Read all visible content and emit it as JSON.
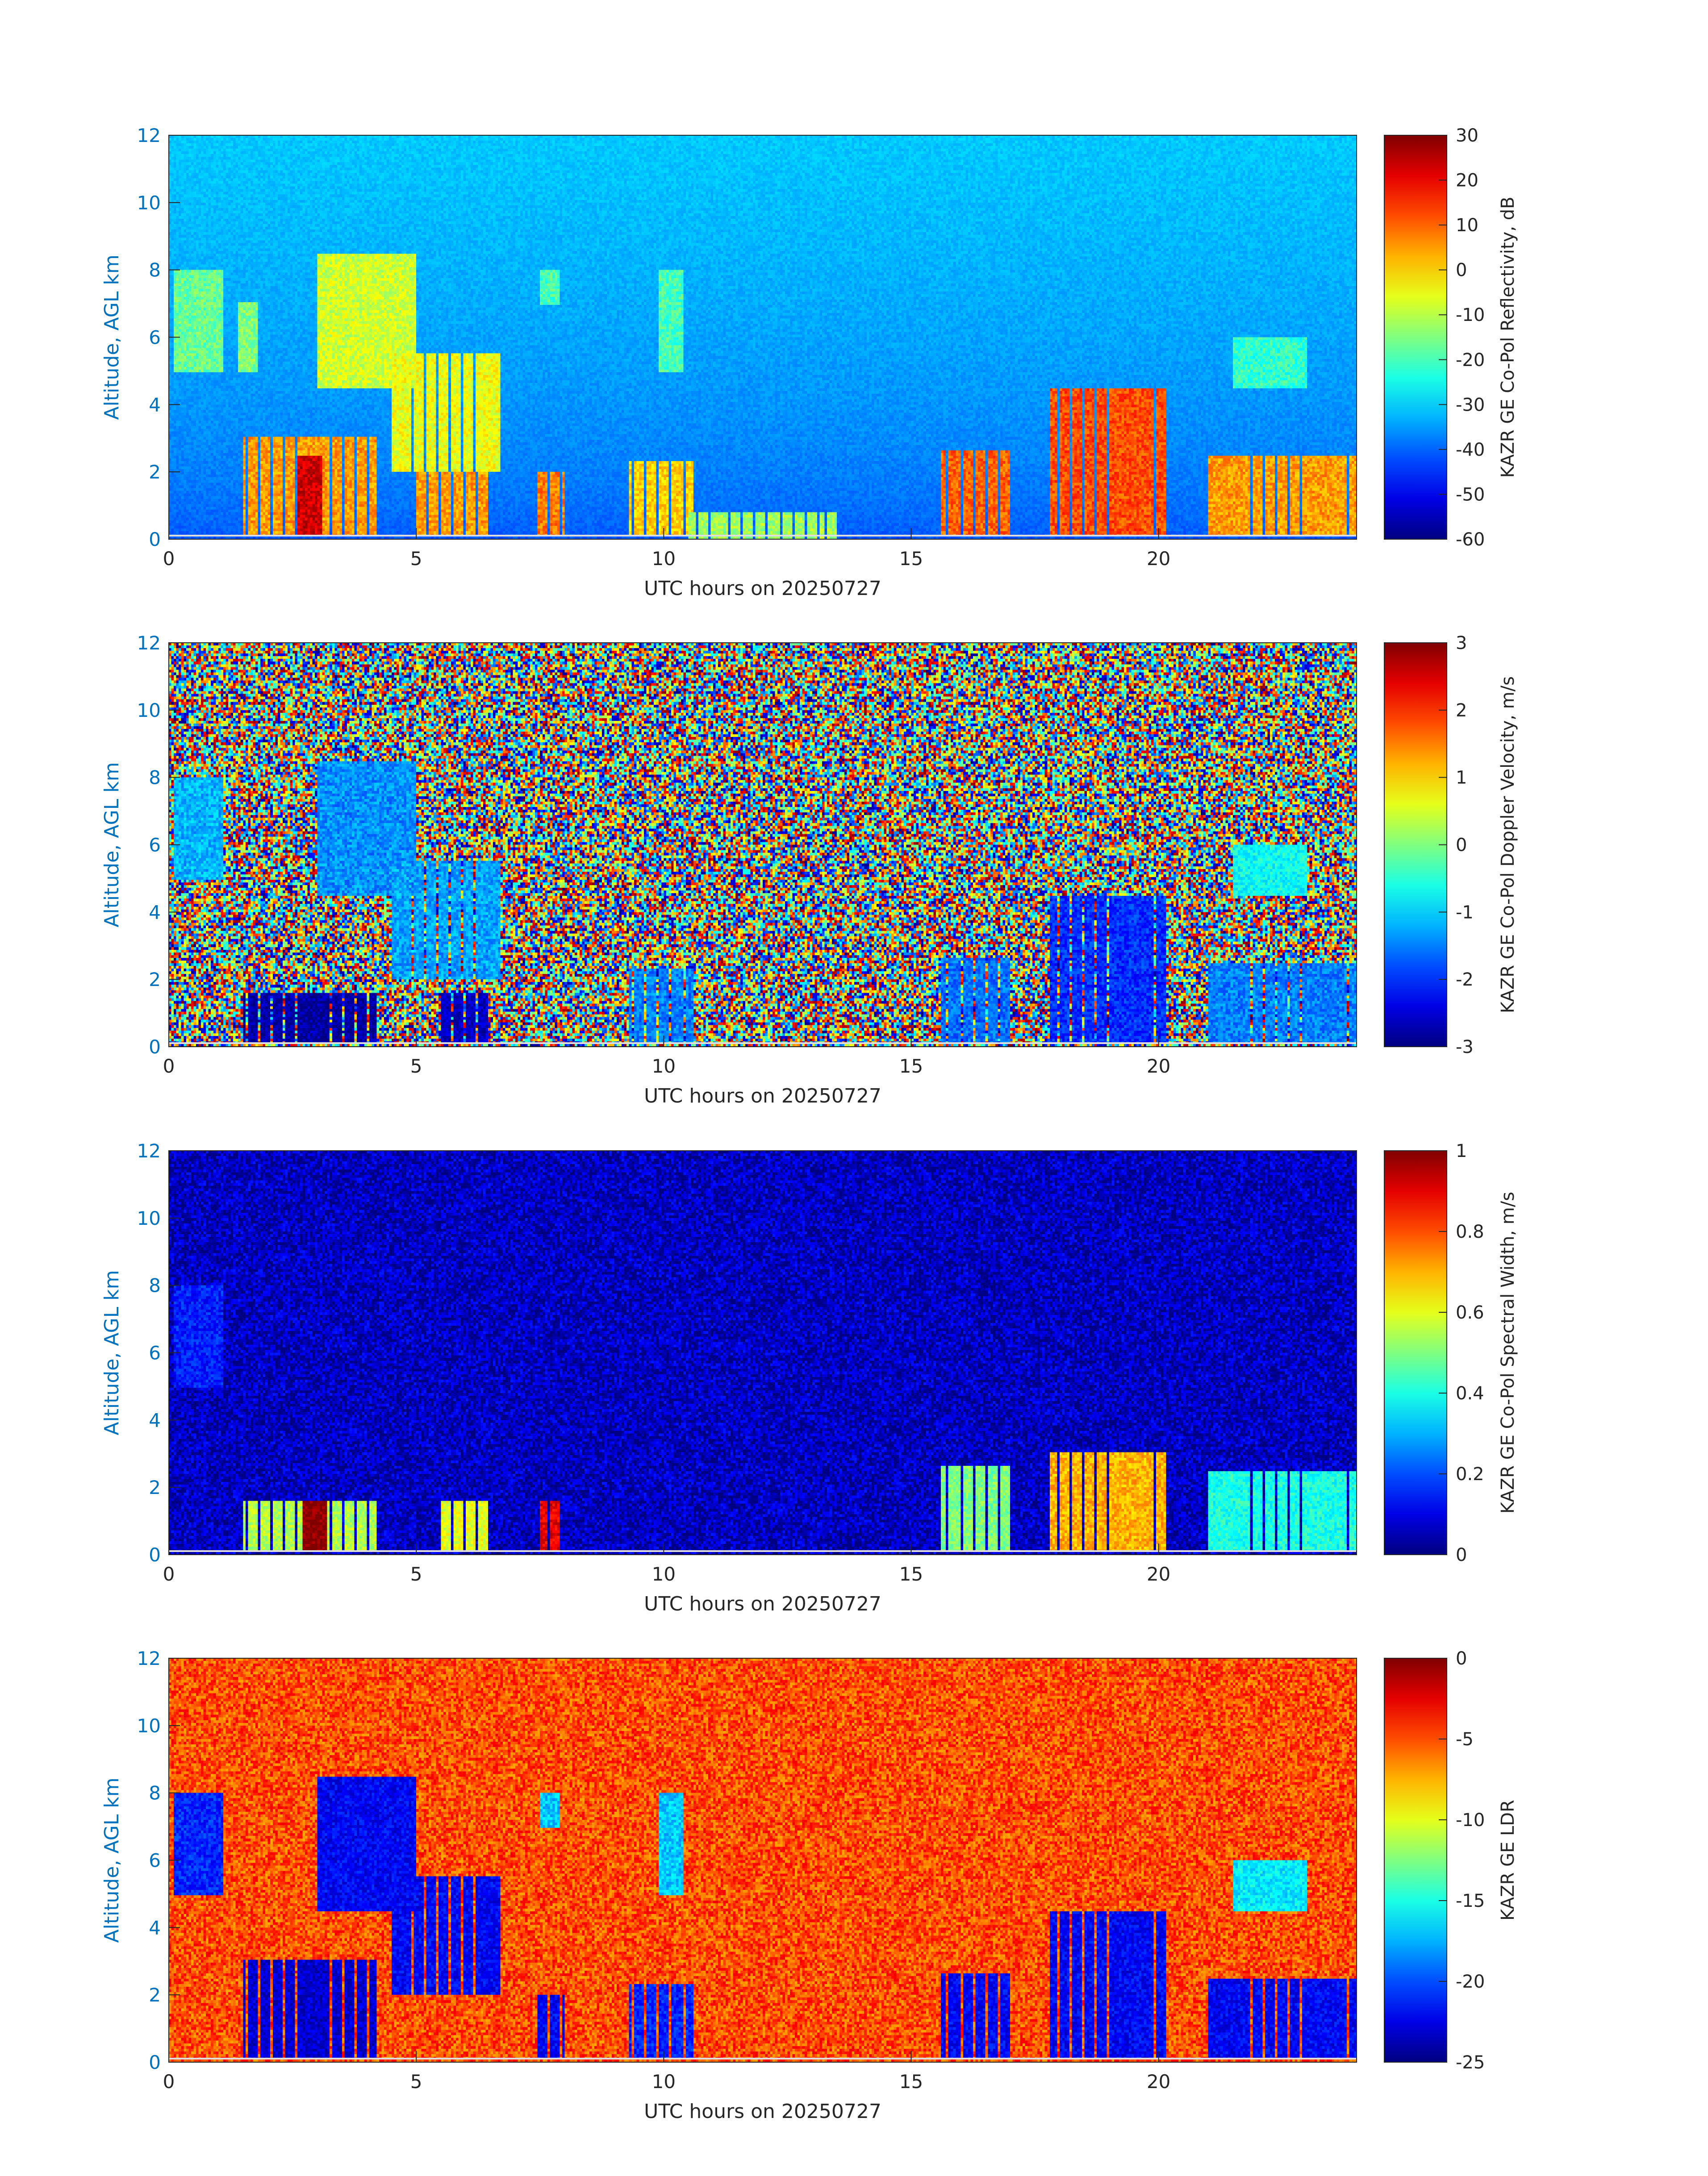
{
  "figure": {
    "xlabel": "UTC hours on 20250727",
    "ylabel": "Altitude, AGL km",
    "axis_label_color": "#0072BD",
    "tick_label_color": "#262626",
    "colormap": "jet"
  },
  "chart_data": [
    {
      "type": "heatmap",
      "panel": "reflectivity",
      "xlabel": "UTC hours on 20250727",
      "ylabel": "Altitude, AGL km",
      "xlim": [
        0,
        24
      ],
      "ylim": [
        0,
        12
      ],
      "xticks": [
        0,
        5,
        10,
        15,
        20
      ],
      "yticks": [
        0,
        2,
        4,
        6,
        8,
        10,
        12
      ],
      "colorbar": {
        "label": "KAZR GE Co-Pol Reflectivity, dB",
        "range": [
          -60,
          30
        ],
        "ticks": [
          30,
          20,
          10,
          0,
          -10,
          -20,
          -30,
          -40,
          -50,
          -60
        ]
      },
      "background": {
        "top": -31,
        "bottom": -42
      },
      "cloud_features": [
        {
          "t": [
            0.1,
            1.1
          ],
          "z": [
            5.0,
            8.0
          ],
          "value": -17
        },
        {
          "t": [
            1.4,
            1.8
          ],
          "z": [
            5.0,
            7.0
          ],
          "value": -15
        },
        {
          "t": [
            3.0,
            5.0
          ],
          "z": [
            4.5,
            8.5
          ],
          "value": -8
        },
        {
          "t": [
            4.5,
            6.7
          ],
          "z": [
            2.0,
            5.5
          ],
          "value": -5
        },
        {
          "t": [
            1.5,
            4.2
          ],
          "z": [
            0.1,
            3.0
          ],
          "value": 5
        },
        {
          "t": [
            2.6,
            3.1
          ],
          "z": [
            0.1,
            2.5
          ],
          "value": 23
        },
        {
          "t": [
            5.0,
            6.5
          ],
          "z": [
            0.1,
            2.0
          ],
          "value": 5
        },
        {
          "t": [
            7.4,
            8.0
          ],
          "z": [
            0.1,
            2.0
          ],
          "value": 8
        },
        {
          "t": [
            9.3,
            10.6
          ],
          "z": [
            0.1,
            2.3
          ],
          "value": 0
        },
        {
          "t": [
            10.5,
            13.5
          ],
          "z": [
            0.0,
            0.8
          ],
          "value": -12
        },
        {
          "t": [
            15.6,
            17.0
          ],
          "z": [
            0.1,
            2.6
          ],
          "value": 10
        },
        {
          "t": [
            17.8,
            20.2
          ],
          "z": [
            0.1,
            4.5
          ],
          "value": 12
        },
        {
          "t": [
            21.0,
            24.0
          ],
          "z": [
            0.1,
            2.5
          ],
          "value": 5
        },
        {
          "t": [
            21.5,
            23.0
          ],
          "z": [
            4.5,
            6.0
          ],
          "value": -22
        },
        {
          "t": [
            7.5,
            7.9
          ],
          "z": [
            7.0,
            8.0
          ],
          "value": -20
        },
        {
          "t": [
            9.9,
            10.4
          ],
          "z": [
            5.0,
            8.0
          ],
          "value": -20
        }
      ]
    },
    {
      "type": "heatmap",
      "panel": "doppler_velocity",
      "xlabel": "UTC hours on 20250727",
      "ylabel": "Altitude, AGL km",
      "xlim": [
        0,
        24
      ],
      "ylim": [
        0,
        12
      ],
      "xticks": [
        0,
        5,
        10,
        15,
        20
      ],
      "yticks": [
        0,
        2,
        4,
        6,
        8,
        10,
        12
      ],
      "colorbar": {
        "label": "KAZR GE Co-Pol Doppler Velocity, m/s",
        "range": [
          -3,
          3
        ],
        "ticks": [
          3,
          2,
          1,
          0,
          -1,
          -2,
          -3
        ]
      },
      "background": "noise",
      "cloud_features": [
        {
          "t": [
            0.1,
            1.1
          ],
          "z": [
            5.0,
            8.0
          ],
          "value": -1.2
        },
        {
          "t": [
            3.0,
            5.0
          ],
          "z": [
            4.5,
            8.5
          ],
          "value": -1.4
        },
        {
          "t": [
            4.5,
            6.7
          ],
          "z": [
            2.0,
            5.5
          ],
          "value": -1.3
        },
        {
          "t": [
            1.5,
            4.2
          ],
          "z": [
            0.1,
            1.6
          ],
          "value": -2.8
        },
        {
          "t": [
            5.5,
            6.5
          ],
          "z": [
            0.1,
            1.6
          ],
          "value": -2.6
        },
        {
          "t": [
            9.3,
            10.6
          ],
          "z": [
            0.1,
            2.3
          ],
          "value": -1.5
        },
        {
          "t": [
            15.6,
            17.0
          ],
          "z": [
            0.1,
            2.6
          ],
          "value": -1.6
        },
        {
          "t": [
            17.8,
            20.2
          ],
          "z": [
            0.1,
            4.5
          ],
          "value": -2.0
        },
        {
          "t": [
            21.0,
            24.0
          ],
          "z": [
            0.1,
            2.5
          ],
          "value": -1.5
        },
        {
          "t": [
            21.5,
            23.0
          ],
          "z": [
            4.5,
            6.0
          ],
          "value": -0.7
        }
      ]
    },
    {
      "type": "heatmap",
      "panel": "spectral_width",
      "xlabel": "UTC hours on 20250727",
      "ylabel": "Altitude, AGL km",
      "xlim": [
        0,
        24
      ],
      "ylim": [
        0,
        12
      ],
      "xticks": [
        0,
        5,
        10,
        15,
        20
      ],
      "yticks": [
        0,
        2,
        4,
        6,
        8,
        10,
        12
      ],
      "colorbar": {
        "label": "KAZR GE Co-Pol Spectral Width, m/s",
        "range": [
          0,
          1
        ],
        "ticks": [
          1,
          0.8,
          0.6,
          0.4,
          0.2,
          0
        ]
      },
      "background": 0.06,
      "cloud_features": [
        {
          "t": [
            0.1,
            1.1
          ],
          "z": [
            5.0,
            8.0
          ],
          "value": 0.15
        },
        {
          "t": [
            1.5,
            4.2
          ],
          "z": [
            0.1,
            1.6
          ],
          "value": 0.55
        },
        {
          "t": [
            2.7,
            3.2
          ],
          "z": [
            0.1,
            1.6
          ],
          "value": 1.0
        },
        {
          "t": [
            5.5,
            6.5
          ],
          "z": [
            0.1,
            1.6
          ],
          "value": 0.6
        },
        {
          "t": [
            7.5,
            7.9
          ],
          "z": [
            0.1,
            1.6
          ],
          "value": 0.9
        },
        {
          "t": [
            15.6,
            17.0
          ],
          "z": [
            0.1,
            2.6
          ],
          "value": 0.5
        },
        {
          "t": [
            17.8,
            20.2
          ],
          "z": [
            0.1,
            3.0
          ],
          "value": 0.7
        },
        {
          "t": [
            21.0,
            24.0
          ],
          "z": [
            0.1,
            2.5
          ],
          "value": 0.4
        }
      ]
    },
    {
      "type": "heatmap",
      "panel": "ldr",
      "xlabel": "UTC hours on 20250727",
      "ylabel": "Altitude, AGL km",
      "xlim": [
        0,
        24
      ],
      "ylim": [
        0,
        12
      ],
      "xticks": [
        0,
        5,
        10,
        15,
        20
      ],
      "yticks": [
        0,
        2,
        4,
        6,
        8,
        10,
        12
      ],
      "colorbar": {
        "label": "KAZR GE LDR",
        "range": [
          -25,
          0
        ],
        "ticks": [
          0,
          -5,
          -10,
          -15,
          -20,
          -25
        ]
      },
      "background": -5,
      "cloud_features": [
        {
          "t": [
            0.1,
            1.1
          ],
          "z": [
            5.0,
            8.0
          ],
          "value": -21
        },
        {
          "t": [
            3.0,
            5.0
          ],
          "z": [
            4.5,
            8.5
          ],
          "value": -22
        },
        {
          "t": [
            4.5,
            6.7
          ],
          "z": [
            2.0,
            5.5
          ],
          "value": -22
        },
        {
          "t": [
            1.5,
            4.2
          ],
          "z": [
            0.1,
            3.0
          ],
          "value": -23
        },
        {
          "t": [
            7.4,
            8.0
          ],
          "z": [
            0.1,
            2.0
          ],
          "value": -22
        },
        {
          "t": [
            9.3,
            10.6
          ],
          "z": [
            0.1,
            2.3
          ],
          "value": -21
        },
        {
          "t": [
            15.6,
            17.0
          ],
          "z": [
            0.1,
            2.6
          ],
          "value": -22
        },
        {
          "t": [
            17.8,
            20.2
          ],
          "z": [
            0.1,
            4.5
          ],
          "value": -22
        },
        {
          "t": [
            21.0,
            24.0
          ],
          "z": [
            0.1,
            2.5
          ],
          "value": -22
        },
        {
          "t": [
            21.5,
            23.0
          ],
          "z": [
            4.5,
            6.0
          ],
          "value": -16
        },
        {
          "t": [
            7.5,
            7.9
          ],
          "z": [
            7.0,
            8.0
          ],
          "value": -17
        },
        {
          "t": [
            9.9,
            10.4
          ],
          "z": [
            5.0,
            8.0
          ],
          "value": -17
        }
      ]
    }
  ]
}
